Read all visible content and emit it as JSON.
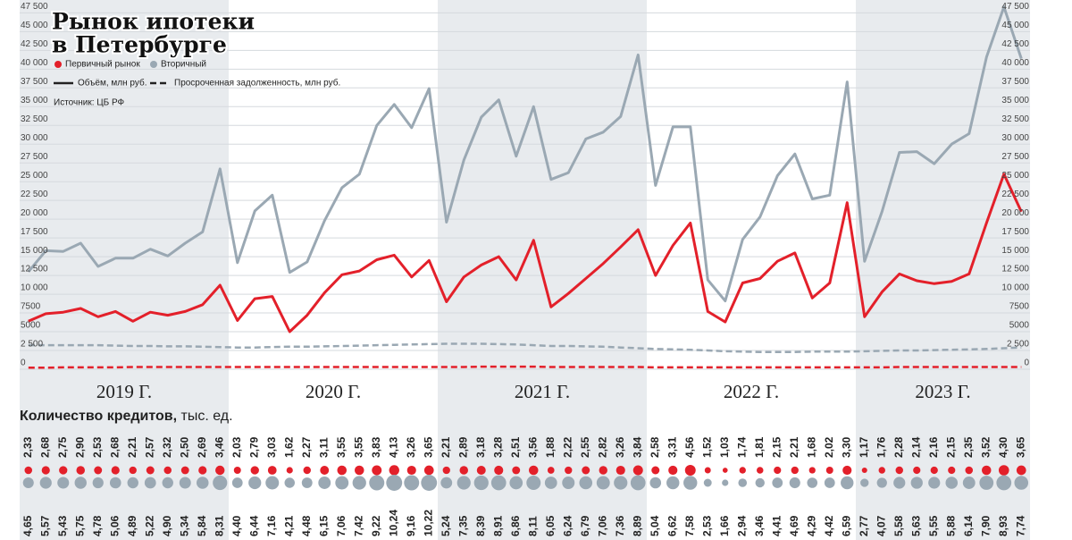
{
  "chart_data": {
    "type": "line",
    "title": [
      "Рынок ипотеки",
      "в Петербурге"
    ],
    "source": "Источник: ЦБ РФ",
    "line_styles": [
      {
        "label": "Объём, млн руб.",
        "dashed": false
      },
      {
        "label": "Просроченная задолженность, млн руб.",
        "dashed": true
      }
    ],
    "credits_title": "Количество кредитов,",
    "credits_unit": "тыс. ед.",
    "groups": [
      {
        "label": "2019 Г.",
        "count": 12,
        "shaded": true
      },
      {
        "label": "2020 Г.",
        "count": 12,
        "shaded": false
      },
      {
        "label": "2021 Г.",
        "count": 12,
        "shaded": true
      },
      {
        "label": "2022 Г.",
        "count": 12,
        "shaded": false
      },
      {
        "label": "2023 Г.",
        "count": 10,
        "shaded": true
      }
    ],
    "ylim": [
      0,
      48500
    ],
    "yticks": [
      0,
      {
        "value": 2500,
        "label": "2 500"
      },
      5000,
      7500,
      {
        "value": 10000,
        "label": "10 000"
      },
      {
        "value": 12500,
        "label": "12 500"
      },
      {
        "value": 15000,
        "label": "15 000"
      },
      {
        "value": 17500,
        "label": "17 500"
      },
      {
        "value": 20000,
        "label": "20 000"
      },
      {
        "value": 22500,
        "label": "22 500"
      },
      {
        "value": 25000,
        "label": "25 000"
      },
      {
        "value": 27500,
        "label": "27 500"
      },
      {
        "value": 30000,
        "label": "30 000"
      },
      {
        "value": 32500,
        "label": "32 500"
      },
      {
        "value": 35000,
        "label": "35 000"
      },
      {
        "value": 37500,
        "label": "37 500"
      },
      {
        "value": 40000,
        "label": "40 000"
      },
      {
        "value": 42500,
        "label": "42 500"
      },
      {
        "value": 45000,
        "label": "45 000"
      },
      {
        "value": 47500,
        "label": "47 500"
      }
    ],
    "grid": true,
    "series": [
      {
        "name": "Первичный рынок",
        "color": "#e3202a",
        "values": [
          6400,
          7400,
          7600,
          8100,
          7000,
          7700,
          6400,
          7600,
          7200,
          7700,
          8600,
          11200,
          6500,
          9400,
          9700,
          5000,
          7200,
          10200,
          12600,
          13100,
          14600,
          15200,
          12300,
          14500,
          9000,
          12300,
          13900,
          15000,
          11900,
          17200,
          8300,
          10100,
          12100,
          14100,
          16300,
          18600,
          12500,
          16500,
          19500,
          7700,
          6300,
          11500,
          12100,
          14400,
          15500,
          9500,
          11500,
          22200,
          7000,
          10300,
          12700,
          11800,
          11400,
          11700,
          12700,
          19500,
          26000,
          21000
        ],
        "overdue": [
          200,
          200,
          250,
          250,
          250,
          250,
          300,
          300,
          300,
          300,
          300,
          300,
          300,
          300,
          300,
          300,
          300,
          300,
          300,
          300,
          300,
          300,
          300,
          300,
          300,
          300,
          350,
          350,
          350,
          350,
          300,
          300,
          300,
          300,
          300,
          300,
          250,
          250,
          250,
          250,
          250,
          250,
          250,
          250,
          250,
          250,
          250,
          250,
          250,
          250,
          300,
          300,
          300,
          300,
          300,
          300,
          300,
          300
        ],
        "credits": [
          2.33,
          2.68,
          2.75,
          2.9,
          2.53,
          2.68,
          2.21,
          2.57,
          2.32,
          2.5,
          2.69,
          3.46,
          2.03,
          2.79,
          3.03,
          1.62,
          2.27,
          3.11,
          3.55,
          3.55,
          3.83,
          4.13,
          3.26,
          3.65,
          2.21,
          2.89,
          3.18,
          3.28,
          2.51,
          3.56,
          1.88,
          2.22,
          2.55,
          2.82,
          3.26,
          3.84,
          2.58,
          3.31,
          4.56,
          1.52,
          1.03,
          1.74,
          1.81,
          2.15,
          2.21,
          1.68,
          2.02,
          3.3,
          1.17,
          1.76,
          2.28,
          2.14,
          2.16,
          2.15,
          2.35,
          3.52,
          4.3,
          3.65
        ],
        "credits_labels": [
          "2,33",
          "2,68",
          "2,75",
          "2,90",
          "2,53",
          "2,68",
          "2,21",
          "2,57",
          "2,32",
          "2,50",
          "2,69",
          "3,46",
          "2,03",
          "2,79",
          "3,03",
          "1,62",
          "2,27",
          "3,11",
          "3,55",
          "3,55",
          "3,83",
          "4,13",
          "3,26",
          "3,65",
          "2,21",
          "2,89",
          "3,18",
          "3,28",
          "2,51",
          "3,56",
          "1,88",
          "2,22",
          "2,55",
          "2,82",
          "3,26",
          "3,84",
          "2,58",
          "3,31",
          "4,56",
          "1,52",
          "1,03",
          "1,74",
          "1,81",
          "2,15",
          "2,21",
          "1,68",
          "2,02",
          "3,30",
          "1,17",
          "1,76",
          "2,28",
          "2,14",
          "2,16",
          "2,15",
          "2,35",
          "3,52",
          "4,30",
          "3,65"
        ]
      },
      {
        "name": "Вторичный",
        "color": "#9aa8b3",
        "values": [
          13000,
          15800,
          15700,
          16800,
          13700,
          14800,
          14800,
          16000,
          15100,
          16800,
          18300,
          26700,
          14200,
          21100,
          23200,
          12900,
          14300,
          19800,
          24200,
          26000,
          32500,
          35300,
          32200,
          37400,
          19600,
          27900,
          33600,
          35900,
          28400,
          35000,
          25300,
          26200,
          30700,
          31600,
          33700,
          41900,
          24500,
          32300,
          32300,
          11900,
          9100,
          17300,
          20300,
          25800,
          28700,
          22700,
          23200,
          38300,
          14400,
          21000,
          28900,
          29000,
          27400,
          30000,
          31400,
          41600,
          48300,
          41400
        ],
        "overdue": [
          3200,
          3200,
          3200,
          3200,
          3200,
          3150,
          3100,
          3100,
          3050,
          3050,
          3000,
          2950,
          2900,
          2900,
          2950,
          3000,
          3000,
          3050,
          3100,
          3150,
          3200,
          3250,
          3300,
          3350,
          3400,
          3400,
          3400,
          3350,
          3300,
          3200,
          3100,
          3100,
          3050,
          3000,
          2900,
          2800,
          2700,
          2650,
          2600,
          2500,
          2400,
          2350,
          2300,
          2300,
          2300,
          2350,
          2350,
          2350,
          2400,
          2450,
          2500,
          2500,
          2550,
          2600,
          2650,
          2700,
          2800,
          2900
        ],
        "credits": [
          4.65,
          5.57,
          5.43,
          5.75,
          4.78,
          5.06,
          4.89,
          5.22,
          4.9,
          5.34,
          5.84,
          8.31,
          4.4,
          6.44,
          7.16,
          4.21,
          4.48,
          6.15,
          7.06,
          7.42,
          9.22,
          10.24,
          9.16,
          10.22,
          5.24,
          7.35,
          8.39,
          8.91,
          6.86,
          8.11,
          6.05,
          6.24,
          6.79,
          7.06,
          7.36,
          8.89,
          5.04,
          6.62,
          7.58,
          2.53,
          1.66,
          2.94,
          3.46,
          4.41,
          4.69,
          4.29,
          4.42,
          6.59,
          2.77,
          4.07,
          5.58,
          5.63,
          5.55,
          5.88,
          6.14,
          7.9,
          8.93,
          7.74
        ],
        "credits_labels": [
          "4,65",
          "5,57",
          "5,43",
          "5,75",
          "4,78",
          "5,06",
          "4,89",
          "5,22",
          "4,90",
          "5,34",
          "5,84",
          "8,31",
          "4,40",
          "6,44",
          "7,16",
          "4,21",
          "4,48",
          "6,15",
          "7,06",
          "7,42",
          "9,22",
          "10,24",
          "9,16",
          "10,22",
          "5,24",
          "7,35",
          "8,39",
          "8,91",
          "6,86",
          "8,11",
          "6,05",
          "6,24",
          "6,79",
          "7,06",
          "7,36",
          "8,89",
          "5,04",
          "6,62",
          "7,58",
          "2,53",
          "1,66",
          "2,94",
          "3,46",
          "4,41",
          "4,69",
          "4,29",
          "4,42",
          "6,59",
          "2,77",
          "4,07",
          "5,58",
          "5,63",
          "5,55",
          "5,88",
          "6,14",
          "7,90",
          "8,93",
          "7,74"
        ]
      }
    ]
  }
}
